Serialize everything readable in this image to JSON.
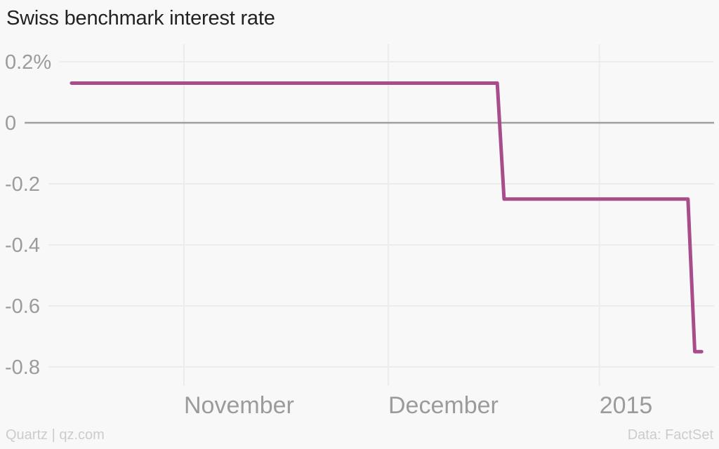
{
  "header": {
    "title": "Swiss benchmark interest rate"
  },
  "footer": {
    "source_left": "Quartz | qz.com",
    "source_right": "Data: FactSet"
  },
  "colors": {
    "background": "#f8f8f8",
    "line": "#a84c8c",
    "grid": "#ececec",
    "zero_line": "#9e9e9e",
    "axis_text": "#9b9b9b",
    "title_text": "#222222",
    "footer_text": "#cccccc"
  },
  "chart_data": {
    "type": "line",
    "subtype": "step",
    "title": "Swiss benchmark interest rate",
    "unit": "%",
    "grid": true,
    "legend": false,
    "y_domain": [
      0.2,
      -0.8
    ],
    "y_ticks": [
      {
        "label": "0.2%",
        "value": 0.2
      },
      {
        "label": "0",
        "value": 0
      },
      {
        "label": "-0.2",
        "value": -0.2
      },
      {
        "label": "-0.4",
        "value": -0.4
      },
      {
        "label": "-0.6",
        "value": -0.6
      },
      {
        "label": "-0.8",
        "value": -0.8
      }
    ],
    "x_ticks": [
      {
        "label": "November",
        "day": 0
      },
      {
        "label": "December",
        "day": 30
      },
      {
        "label": "2015",
        "day": 61
      }
    ],
    "x_day_reference": "days relative to Nov 1, 2014",
    "points": [
      {
        "date_approx": "2014-10-15",
        "day": -16.5,
        "value": 0.13
      },
      {
        "date_approx": "2014-12-17",
        "day": 46,
        "value": 0.13
      },
      {
        "date_approx": "2014-12-18",
        "day": 47,
        "value": -0.25
      },
      {
        "date_approx": "2015-01-14",
        "day": 74,
        "value": -0.25
      },
      {
        "date_approx": "2015-01-15",
        "day": 75,
        "value": -0.75
      },
      {
        "date_approx": "2015-01-16",
        "day": 76,
        "value": -0.75
      }
    ]
  }
}
